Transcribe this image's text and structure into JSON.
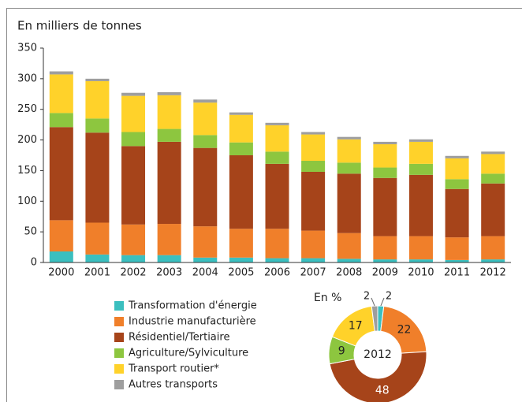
{
  "chart_data": [
    {
      "type": "bar",
      "stacked": true,
      "y_label": "En milliers de tonnes",
      "categories": [
        "2000",
        "2001",
        "2002",
        "2003",
        "2004",
        "2005",
        "2006",
        "2007",
        "2008",
        "2009",
        "2010",
        "2011",
        "2012"
      ],
      "ylim": [
        0,
        350
      ],
      "yticks": [
        0,
        50,
        100,
        150,
        200,
        250,
        300,
        350
      ],
      "grid": false,
      "series": [
        {
          "name": "Transformation d'énergie",
          "color": "#3bbfbf",
          "values": [
            18,
            13,
            12,
            12,
            8,
            8,
            7,
            7,
            6,
            5,
            5,
            4,
            5
          ]
        },
        {
          "name": "Industrie manufacturière",
          "color": "#f07f2a",
          "values": [
            51,
            52,
            50,
            51,
            51,
            47,
            48,
            45,
            42,
            38,
            38,
            37,
            38
          ]
        },
        {
          "name": "Résidentiel/Tertiaire",
          "color": "#a6441a",
          "values": [
            152,
            147,
            128,
            134,
            128,
            120,
            106,
            96,
            97,
            95,
            100,
            79,
            86
          ]
        },
        {
          "name": "Agriculture/Sylviculture",
          "color": "#8dc63f",
          "values": [
            23,
            23,
            23,
            21,
            21,
            21,
            20,
            18,
            18,
            17,
            18,
            16,
            16
          ]
        },
        {
          "name": "Transport routier*",
          "color": "#ffd22a",
          "values": [
            63,
            61,
            59,
            55,
            53,
            45,
            43,
            43,
            38,
            38,
            36,
            34,
            32
          ]
        },
        {
          "name": "Autres transports",
          "color": "#9e9e9e",
          "values": [
            5,
            4,
            5,
            5,
            5,
            4,
            4,
            4,
            4,
            4,
            4,
            4,
            4
          ]
        }
      ]
    },
    {
      "type": "pie",
      "donut": true,
      "title": "En %",
      "center_label": "2012",
      "values": [
        2,
        22,
        48,
        9,
        17,
        2
      ],
      "colors": [
        "#3bbfbf",
        "#f07f2a",
        "#a6441a",
        "#8dc63f",
        "#ffd22a",
        "#9e9e9e"
      ]
    }
  ]
}
